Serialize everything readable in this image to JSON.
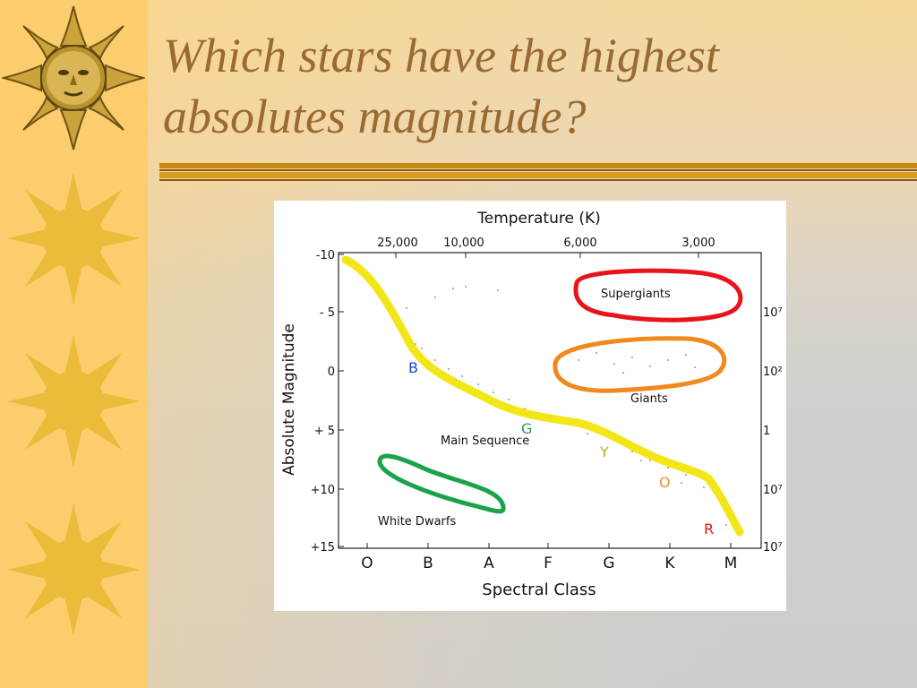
{
  "slide": {
    "title": "Which stars have the highest absolutes magnitude?",
    "title_color": "#9a6a33",
    "decoration": {
      "left_strip_color": "#fccd6d",
      "sun_color": "#ebbb3a",
      "divider_color": "#c98a14",
      "icons": [
        "sun-face-icon",
        "sun-icon",
        "sun-icon",
        "sun-icon"
      ]
    }
  },
  "diagram": {
    "top_axis": {
      "title": "Temperature (K)",
      "ticks": [
        "25,000",
        "10,000",
        "6,000",
        "3,000"
      ]
    },
    "left_axis": {
      "title": "Absolute Magnitude",
      "ticks": [
        "-10",
        "- 5",
        "0",
        "+ 5",
        "+10",
        "+15"
      ]
    },
    "right_axis": {
      "ticks": [
        "10⁷",
        "10²",
        "1",
        "10⁷",
        "10⁷"
      ]
    },
    "bottom_axis": {
      "title": "Spectral Class",
      "ticks": [
        "O",
        "B",
        "A",
        "F",
        "G",
        "K",
        "M"
      ]
    },
    "regions": {
      "supergiants": {
        "label": "Supergiants",
        "color": "#e8141c"
      },
      "giants": {
        "label": "Giants",
        "color": "#f08a1c"
      },
      "main_sequence": {
        "label": "Main Sequence",
        "color": "#f2e619"
      },
      "white_dwarfs": {
        "label": "White Dwarfs",
        "color": "#1aa34a"
      }
    },
    "star_markers": [
      {
        "letter": "B",
        "color": "#1f3fd6"
      },
      {
        "letter": "G",
        "color": "#2f9a5a"
      },
      {
        "letter": "Y",
        "color": "#b3a926"
      },
      {
        "letter": "O",
        "color": "#e8922a"
      },
      {
        "letter": "R",
        "color": "#e8141c"
      }
    ]
  }
}
